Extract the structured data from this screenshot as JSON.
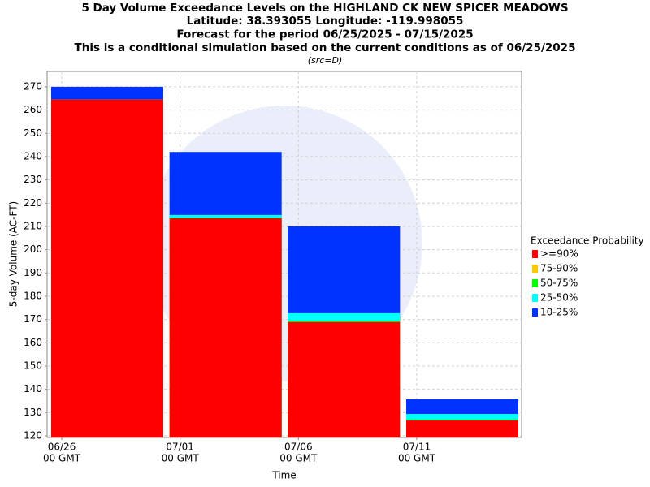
{
  "chart_data": {
    "type": "bar",
    "title": "5 Day Volume Exceedance Levels on the HIGHLAND CK NEW SPICER MEADOWS",
    "subtitle_lines": [
      "Latitude: 38.393055 Longitude: -119.998055",
      "Forecast for the period 06/25/2025 - 07/15/2025",
      "This is a conditional simulation based on the current conditions as of 06/25/2025"
    ],
    "source_note": "(src=D)",
    "y_label": "5-day Volume (AC-FT)",
    "x_label": "Time",
    "legend_title": "Exceedance Probability",
    "legend": "right",
    "grid": true,
    "overlap": true,
    "categories": [
      null,
      null,
      null,
      null
    ],
    "xtick_labels": [
      [
        "06/26",
        "00 GMT"
      ],
      [
        "07/01",
        "00 GMT"
      ],
      [
        "07/06",
        "00 GMT"
      ],
      [
        "07/11",
        "00 GMT"
      ]
    ],
    "series": [
      {
        "name": ">=90%",
        "color": "#ff0000",
        "values": [
          264.5,
          213.5,
          168.9,
          126.6
        ]
      },
      {
        "name": "75-90%",
        "color": "#ffc800",
        "values": [
          264.5,
          213.5,
          168.9,
          126.6
        ]
      },
      {
        "name": "50-75%",
        "color": "#00ff00",
        "values": [
          264.5,
          213.7,
          169.4,
          127
        ]
      },
      {
        "name": "25-50%",
        "color": "#00ffff",
        "values": [
          264.5,
          214.9,
          172.7,
          129.4
        ]
      },
      {
        "name": "10-25%",
        "color": "#0033ff",
        "values": [
          270,
          242,
          210,
          135.7
        ]
      }
    ],
    "ylim": [
      119.3,
      276.6
    ],
    "yticks": [
      120,
      130,
      140,
      150,
      160,
      170,
      180,
      190,
      200,
      210,
      220,
      230,
      240,
      250,
      260,
      270
    ]
  }
}
